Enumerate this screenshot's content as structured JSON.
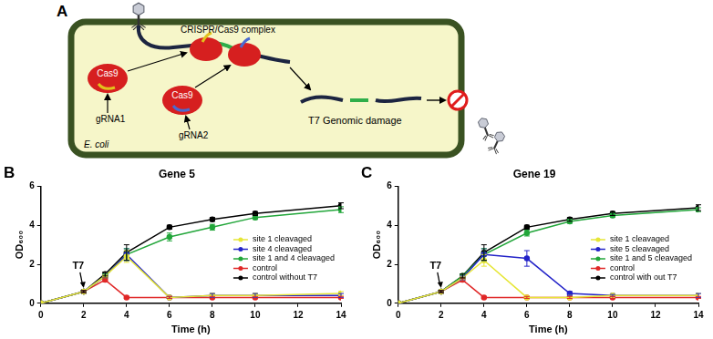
{
  "diagram": {
    "panel_label": "A",
    "cell_label": "E. coli",
    "complex_label": "CRISPR/Cas9 complex",
    "cas9_labels": [
      "Cas9",
      "Cas9"
    ],
    "grna_labels": [
      "gRNA1",
      "gRNA2"
    ],
    "damage_label": "T7 Genomic damage"
  },
  "chart_data": [
    {
      "type": "line",
      "panel_label": "B",
      "title": "Gene 5",
      "x_label": "Time (h)",
      "y_label": "OD₆₀₀",
      "xlim": [
        0,
        14
      ],
      "xticks": [
        0,
        2,
        4,
        6,
        8,
        10,
        12,
        14
      ],
      "ylim": [
        0,
        6
      ],
      "yticks": [
        0,
        2,
        4,
        6
      ],
      "grid": false,
      "legend": "right",
      "marker": "circle",
      "annotation": {
        "text": "T7",
        "x": 2,
        "y": 0.6
      },
      "x": [
        0,
        2,
        3,
        4,
        6,
        8,
        10,
        14
      ],
      "series": [
        {
          "name": "site 1 cleavaged",
          "color": "#e6e637",
          "values": [
            0,
            0.6,
            1.4,
            2.4,
            0.3,
            0.4,
            0.4,
            0.5
          ],
          "errors": [
            0,
            0.05,
            0.1,
            0.3,
            0.05,
            0.1,
            0.1,
            0.1
          ]
        },
        {
          "name": "site 4 cleavaged",
          "color": "#2323c8",
          "values": [
            0,
            0.6,
            1.4,
            2.5,
            0.3,
            0.4,
            0.4,
            0.4
          ],
          "errors": [
            0,
            0.05,
            0.1,
            0.3,
            0.05,
            0.1,
            0.1,
            0.1
          ]
        },
        {
          "name": "site 1 and 4 cleavaged",
          "color": "#22a63a",
          "values": [
            0,
            0.6,
            1.4,
            2.5,
            3.4,
            3.9,
            4.4,
            4.8
          ],
          "errors": [
            0,
            0.05,
            0.1,
            0.3,
            0.2,
            0.15,
            0.1,
            0.15
          ]
        },
        {
          "name": "control",
          "color": "#e02828",
          "values": [
            0,
            0.6,
            1.2,
            0.3,
            0.3,
            0.3,
            0.3,
            0.3
          ],
          "errors": [
            0,
            0.05,
            0.1,
            0.05,
            0.05,
            0.05,
            0.05,
            0.05
          ]
        },
        {
          "name": "control without T7",
          "color": "#000000",
          "values": [
            0,
            0.6,
            1.5,
            2.6,
            3.9,
            4.3,
            4.6,
            5.0
          ],
          "errors": [
            0,
            0.05,
            0.1,
            0.4,
            0.1,
            0.1,
            0.1,
            0.15
          ]
        }
      ]
    },
    {
      "type": "line",
      "panel_label": "C",
      "title": "Gene 19",
      "x_label": "Time (h)",
      "y_label": "OD₆₀₀",
      "xlim": [
        0,
        14
      ],
      "xticks": [
        0,
        2,
        4,
        6,
        8,
        10,
        12,
        14
      ],
      "ylim": [
        0,
        6
      ],
      "yticks": [
        0,
        2,
        4,
        6
      ],
      "grid": false,
      "legend": "right",
      "marker": "circle",
      "annotation": {
        "text": "T7",
        "x": 2,
        "y": 0.6
      },
      "x": [
        0,
        2,
        3,
        4,
        6,
        8,
        10,
        14
      ],
      "series": [
        {
          "name": "site 1 cleavaged",
          "color": "#e6e637",
          "values": [
            0,
            0.6,
            1.3,
            2.2,
            0.3,
            0.3,
            0.4,
            0.4
          ],
          "errors": [
            0,
            0.05,
            0.1,
            0.3,
            0.05,
            0.05,
            0.05,
            0.1
          ]
        },
        {
          "name": "site 5 cleavaged",
          "color": "#2323c8",
          "values": [
            0,
            0.6,
            1.3,
            2.5,
            2.3,
            0.5,
            0.4,
            0.4
          ],
          "errors": [
            0,
            0.05,
            0.1,
            0.3,
            0.4,
            0.1,
            0.05,
            0.1
          ]
        },
        {
          "name": "site 1 and 5 cleavaged",
          "color": "#22a63a",
          "values": [
            0,
            0.6,
            1.4,
            2.5,
            3.6,
            4.2,
            4.5,
            4.8
          ],
          "errors": [
            0,
            0.05,
            0.1,
            0.3,
            0.15,
            0.1,
            0.1,
            0.1
          ]
        },
        {
          "name": "control",
          "color": "#e02828",
          "values": [
            0,
            0.6,
            1.2,
            0.3,
            0.3,
            0.3,
            0.3,
            0.3
          ],
          "errors": [
            0,
            0.05,
            0.1,
            0.05,
            0.05,
            0.05,
            0.05,
            0.05
          ]
        },
        {
          "name": "control with out T7",
          "color": "#000000",
          "values": [
            0,
            0.6,
            1.4,
            2.6,
            3.9,
            4.3,
            4.6,
            4.9
          ],
          "errors": [
            0,
            0.05,
            0.1,
            0.4,
            0.1,
            0.1,
            0.1,
            0.15
          ]
        }
      ]
    }
  ]
}
